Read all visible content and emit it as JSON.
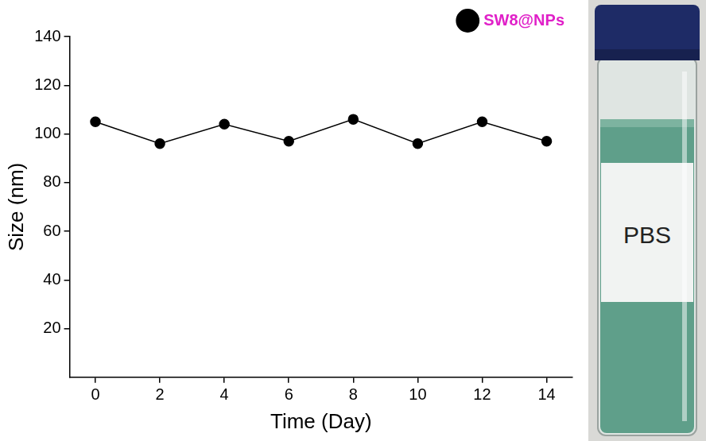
{
  "chart_data": {
    "type": "line",
    "x_label": "Time (Day)",
    "y_label": "Size (nm)",
    "x": [
      0,
      2,
      4,
      6,
      8,
      10,
      12,
      14
    ],
    "series": [
      {
        "name": "SW8@NPs",
        "color": "#000000",
        "marker": "circle",
        "line_style": "solid",
        "values": [
          105,
          96,
          104,
          97,
          106,
          96,
          105,
          97
        ]
      }
    ],
    "xlim": [
      -0.8,
      14.8
    ],
    "xticks": [
      0,
      2,
      4,
      6,
      8,
      10,
      12,
      14
    ],
    "ylim": [
      0,
      140
    ],
    "yticks": [
      20,
      40,
      60,
      80,
      100,
      120,
      140
    ],
    "grid": false,
    "legend": "upper right"
  },
  "photo": {
    "label": "PBS"
  }
}
